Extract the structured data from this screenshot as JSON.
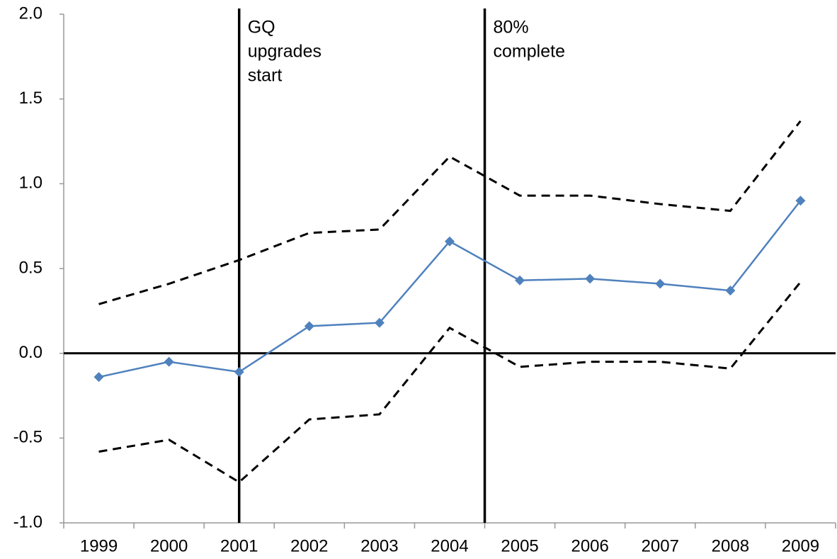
{
  "chart_data": {
    "type": "line",
    "categories": [
      "1999",
      "2000",
      "2001",
      "2002",
      "2003",
      "2004",
      "2005",
      "2006",
      "2007",
      "2008",
      "2009"
    ],
    "series": [
      {
        "color": "#4f81bd",
        "dash": "solid",
        "marker": "diamond",
        "values": [
          -0.14,
          -0.05,
          -0.11,
          0.16,
          0.18,
          0.66,
          0.43,
          0.44,
          0.41,
          0.37,
          0.9
        ]
      },
      {
        "color": "#000000",
        "dash": "dashed",
        "marker": "none",
        "values": [
          0.29,
          0.41,
          0.55,
          0.71,
          0.73,
          1.16,
          0.93,
          0.93,
          0.88,
          0.84,
          1.37
        ]
      },
      {
        "color": "#000000",
        "dash": "dashed",
        "marker": "none",
        "values": [
          -0.58,
          -0.51,
          -0.76,
          -0.39,
          -0.36,
          0.15,
          -0.08,
          -0.05,
          -0.05,
          -0.09,
          0.42
        ]
      }
    ],
    "ylim": [
      -1,
      2
    ],
    "yticks": [
      {
        "value": -1,
        "label": "-1.0"
      },
      -0.5,
      {
        "value": 0,
        "label": "0.0"
      },
      0.5,
      {
        "value": 1,
        "label": "1.0"
      },
      1.5,
      {
        "value": 2,
        "label": "2.0"
      }
    ],
    "annotations": [
      {
        "lines": [
          "GQ",
          "upgrades",
          "start"
        ]
      },
      {
        "lines": [
          "80%",
          "complete"
        ]
      }
    ]
  }
}
